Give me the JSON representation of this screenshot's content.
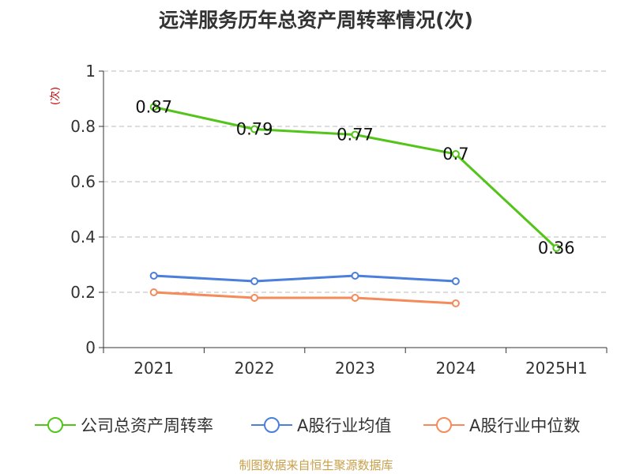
{
  "title": "远洋服务历年总资产周转率情况(次)",
  "unit_label": "(次)",
  "source": "制图数据来自恒生聚源数据库",
  "colors": {
    "company": "#52c41a",
    "industry_avg": "#4a7fdb",
    "industry_median": "#f58a5a",
    "grid": "#bbbbbb",
    "axis": "#333333",
    "unit": "#cc0000",
    "source": "#c8a04a"
  },
  "chart_data": {
    "type": "line",
    "title": "远洋服务历年总资产周转率情况(次)",
    "ylabel": "(次)",
    "xlabel": "",
    "ylim": [
      0,
      1
    ],
    "yticks": [
      "0",
      "0.2",
      "0.4",
      "0.6",
      "0.8",
      "1"
    ],
    "categories": [
      "2021",
      "2022",
      "2023",
      "2024",
      "2025H1"
    ],
    "grid": true,
    "legend_position": "bottom",
    "series": [
      {
        "name": "公司总资产周转率",
        "values": [
          0.87,
          0.79,
          0.77,
          0.7,
          0.36
        ],
        "labels": [
          "0.87",
          "0.79",
          "0.77",
          "0.7",
          "0.36"
        ]
      },
      {
        "name": "A股行业均值",
        "values": [
          0.26,
          0.24,
          0.26,
          0.24,
          null
        ]
      },
      {
        "name": "A股行业中位数",
        "values": [
          0.2,
          0.18,
          0.18,
          0.16,
          null
        ]
      }
    ]
  },
  "legend": [
    {
      "label": "公司总资产周转率",
      "icon": "circle-line-icon"
    },
    {
      "label": "A股行业均值",
      "icon": "circle-line-icon"
    },
    {
      "label": "A股行业中位数",
      "icon": "circle-line-icon"
    }
  ]
}
